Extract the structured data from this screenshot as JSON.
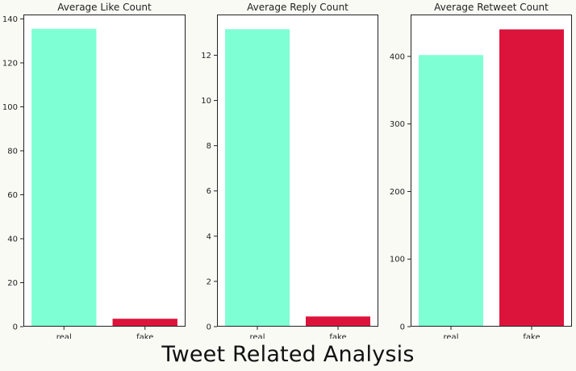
{
  "suptitle": "Tweet Related Analysis",
  "colors": {
    "real": "#7fffd4",
    "fake": "#dc143c",
    "axis": "#222222",
    "plot_bg": "#ffffff",
    "page_bg": "#fafaf5"
  },
  "chart_data": [
    {
      "type": "bar",
      "title": "Average Like Count",
      "categories": [
        "real",
        "fake"
      ],
      "values": [
        135.5,
        3.6
      ],
      "ylim": [
        0,
        142
      ],
      "yticks": [
        0,
        20,
        40,
        60,
        80,
        100,
        120,
        140
      ],
      "bar_colors": [
        "#7fffd4",
        "#dc143c"
      ],
      "xlabel": "",
      "ylabel": "",
      "grid": false
    },
    {
      "type": "bar",
      "title": "Average Reply Count",
      "categories": [
        "real",
        "fake"
      ],
      "values": [
        13.15,
        0.45
      ],
      "ylim": [
        0,
        13.8
      ],
      "yticks": [
        0,
        2,
        4,
        6,
        8,
        10,
        12
      ],
      "bar_colors": [
        "#7fffd4",
        "#dc143c"
      ],
      "xlabel": "",
      "ylabel": "",
      "grid": false
    },
    {
      "type": "bar",
      "title": "Average Retweet Count",
      "categories": [
        "real",
        "fake"
      ],
      "values": [
        402,
        440
      ],
      "ylim": [
        0,
        462
      ],
      "yticks": [
        0,
        100,
        200,
        300,
        400
      ],
      "bar_colors": [
        "#7fffd4",
        "#dc143c"
      ],
      "xlabel": "",
      "ylabel": "",
      "grid": false
    }
  ]
}
